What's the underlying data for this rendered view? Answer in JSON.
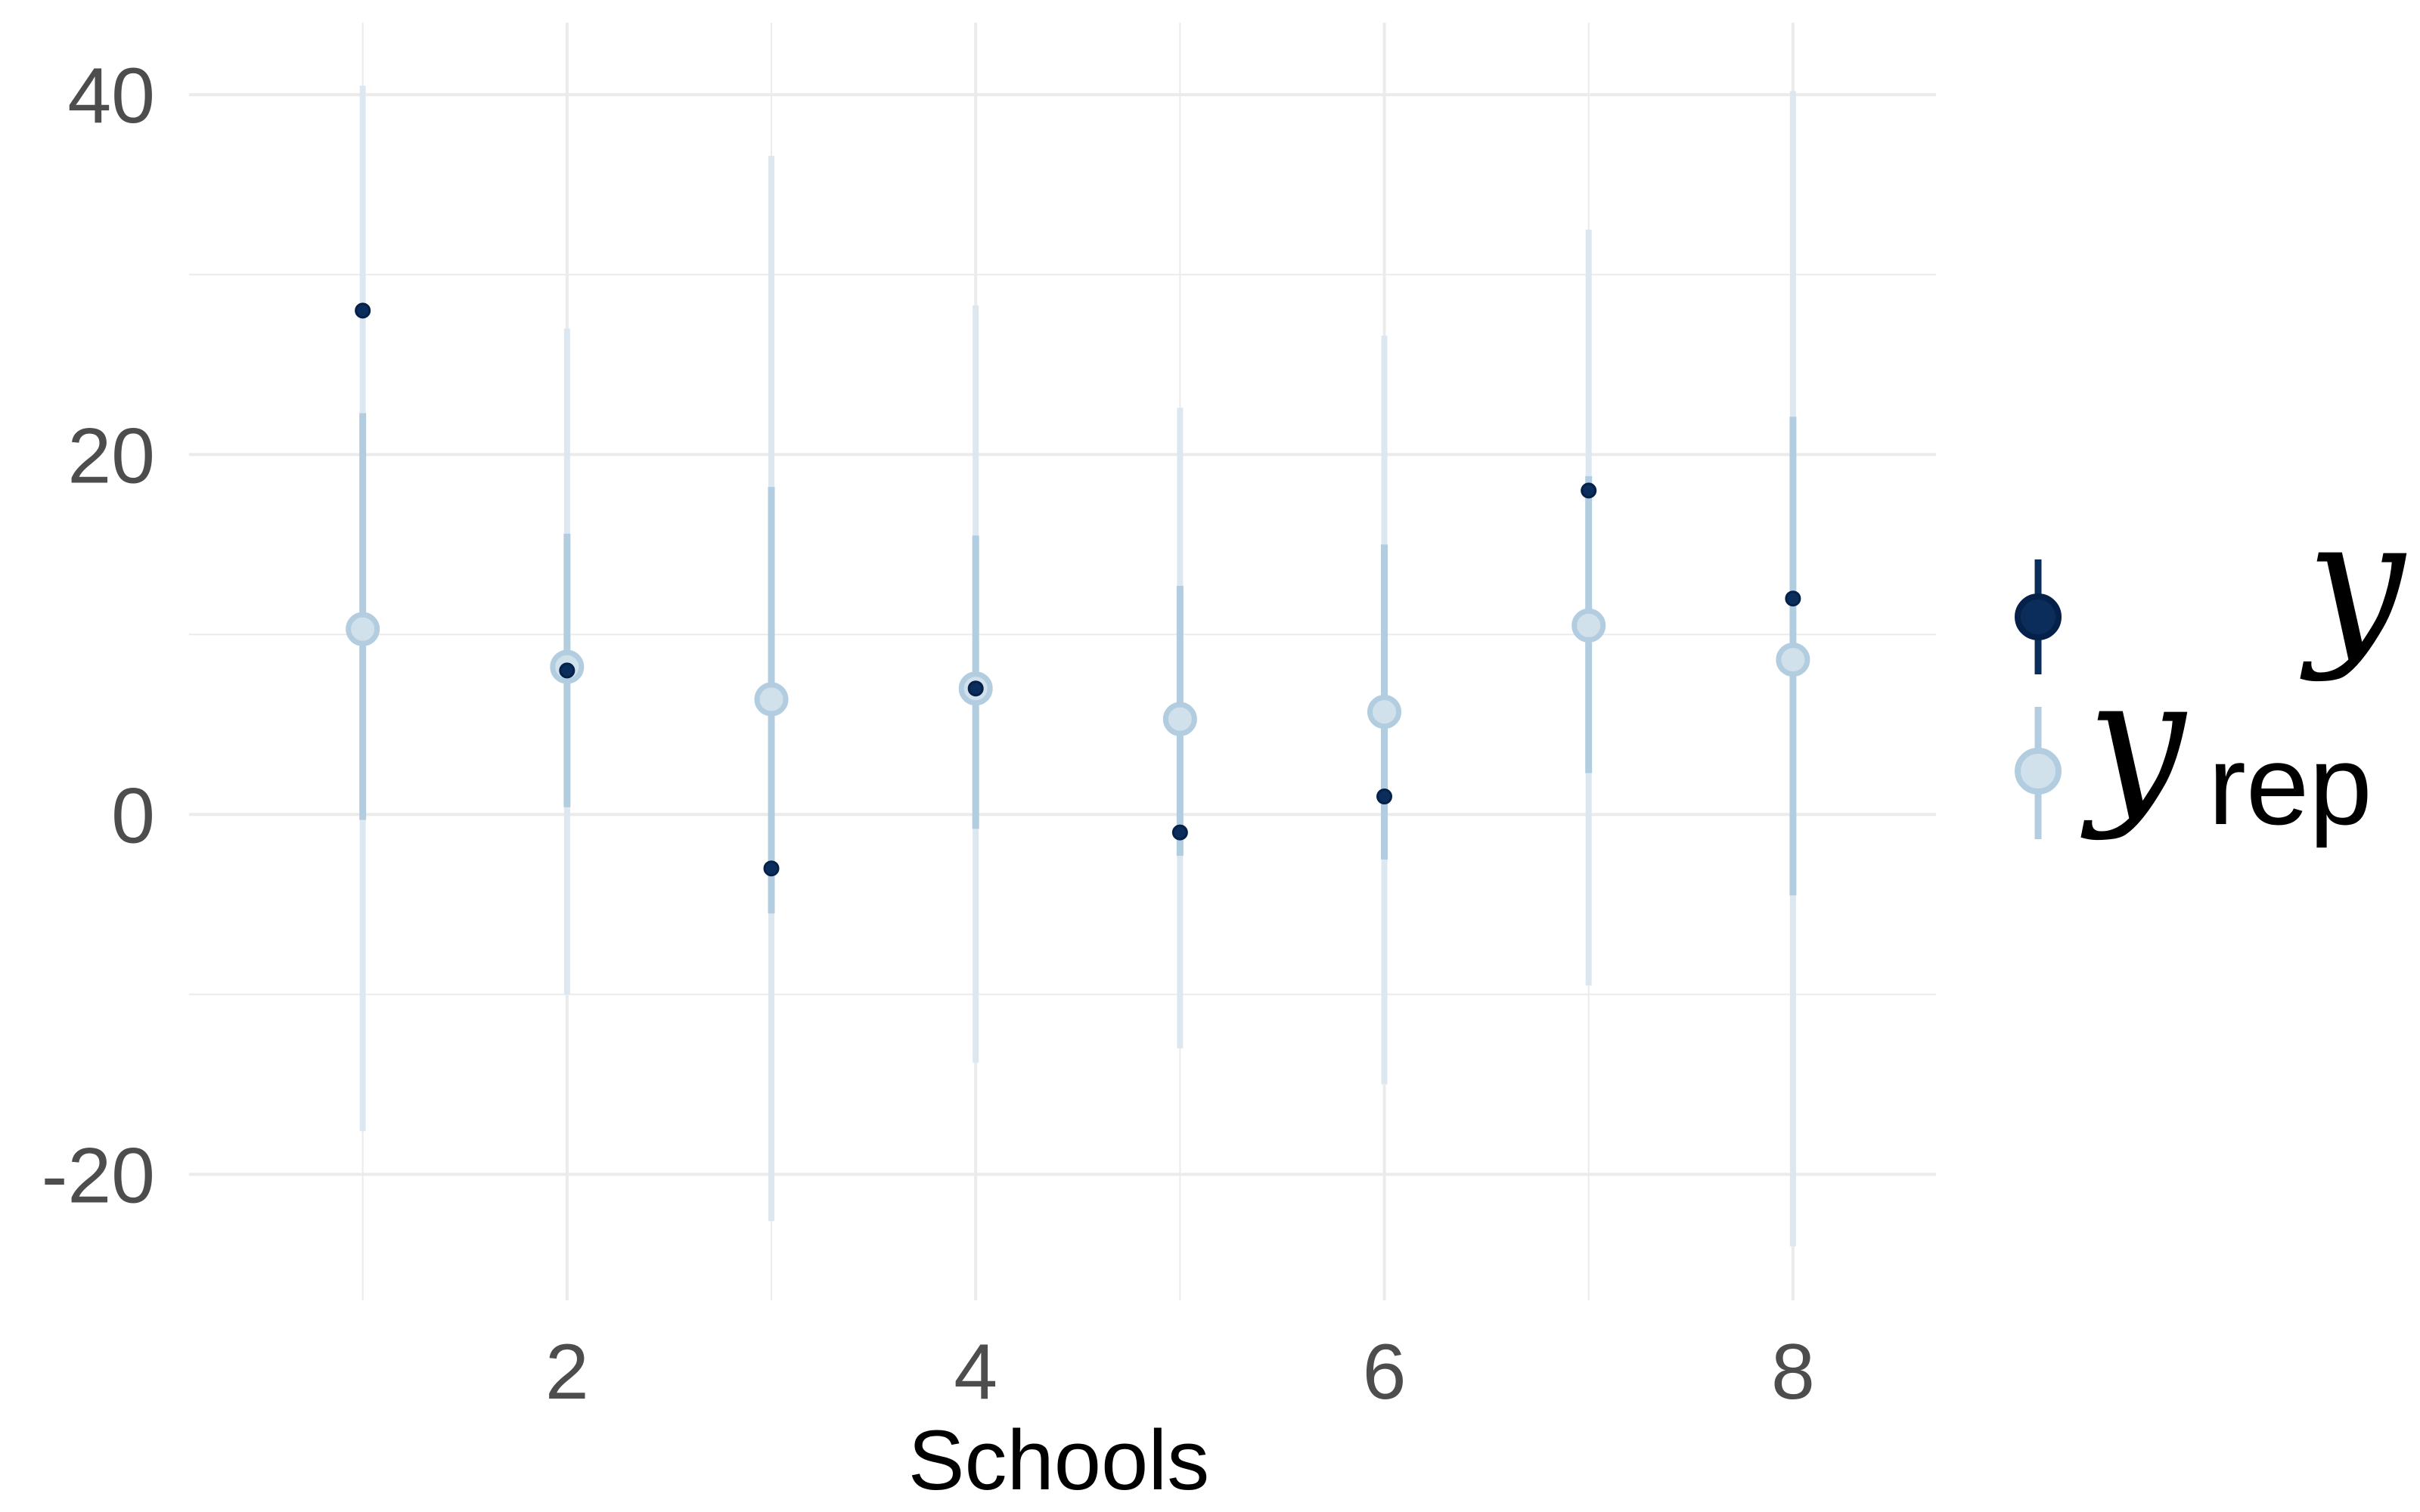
{
  "chart_data": {
    "type": "scatter",
    "xlabel": "Schools",
    "ylabel": "",
    "title": "",
    "x_ticks": [
      2,
      4,
      6,
      8
    ],
    "y_ticks": [
      -20,
      0,
      20,
      40
    ],
    "xlim": [
      0.15,
      8.7
    ],
    "ylim": [
      -27,
      44
    ],
    "grid": true,
    "legend_position": "right",
    "colors": {
      "y_point": "#0b2d5c",
      "y_point_stroke": "#05214a",
      "yrep_point_fill": "#d1e1ec",
      "yrep_point_stroke": "#b3cde0",
      "yrep_outer_interval": "#dde7f0",
      "yrep_inner_interval": "#b3cde0",
      "grid": "#ebebeb"
    },
    "series": [
      {
        "name": "y",
        "points": [
          {
            "x": 1,
            "y": 28
          },
          {
            "x": 2,
            "y": 8
          },
          {
            "x": 3,
            "y": -3
          },
          {
            "x": 4,
            "y": 7
          },
          {
            "x": 5,
            "y": -1
          },
          {
            "x": 6,
            "y": 1
          },
          {
            "x": 7,
            "y": 18
          },
          {
            "x": 8,
            "y": 12
          }
        ]
      },
      {
        "name": "y_rep",
        "points": [
          {
            "x": 1,
            "median": 10.3,
            "inner": [
              -0.3,
              22.3
            ],
            "outer": [
              -17.6,
              40.5
            ]
          },
          {
            "x": 2,
            "median": 8.2,
            "inner": [
              0.4,
              15.6
            ],
            "outer": [
              -10.0,
              27.0
            ]
          },
          {
            "x": 3,
            "median": 6.4,
            "inner": [
              -5.5,
              18.2
            ],
            "outer": [
              -22.6,
              36.6
            ]
          },
          {
            "x": 4,
            "median": 7.0,
            "inner": [
              -0.8,
              15.5
            ],
            "outer": [
              -13.8,
              28.3
            ]
          },
          {
            "x": 5,
            "median": 5.3,
            "inner": [
              -2.3,
              12.7
            ],
            "outer": [
              -13.0,
              22.6
            ]
          },
          {
            "x": 6,
            "median": 5.7,
            "inner": [
              -2.5,
              15.0
            ],
            "outer": [
              -15.0,
              26.6
            ]
          },
          {
            "x": 7,
            "median": 10.5,
            "inner": [
              2.3,
              18.8
            ],
            "outer": [
              -9.5,
              32.5
            ]
          },
          {
            "x": 8,
            "median": 8.6,
            "inner": [
              -4.5,
              22.1
            ],
            "outer": [
              -24.0,
              40.2
            ]
          }
        ]
      }
    ],
    "legend": {
      "entries": [
        {
          "symbol": "y",
          "subscript": ""
        },
        {
          "symbol": "y",
          "subscript": "rep"
        }
      ]
    }
  }
}
